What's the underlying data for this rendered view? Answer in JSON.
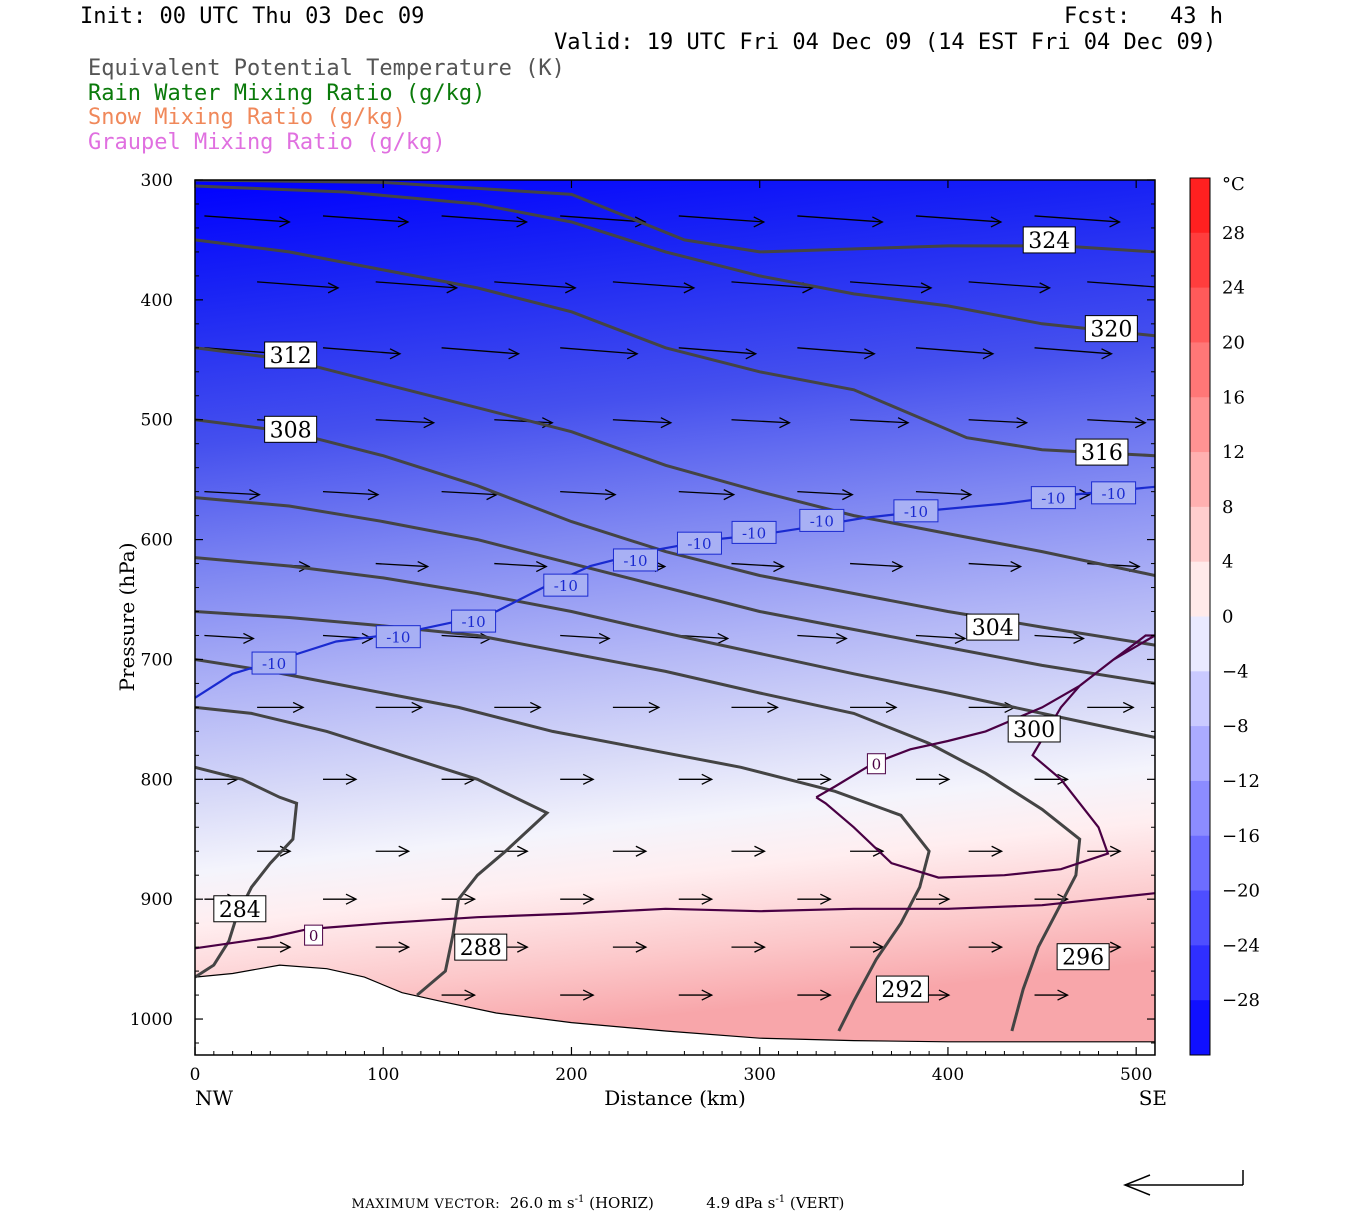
{
  "header": {
    "init": "Init: 00 UTC Thu 03 Dec 09",
    "fcst": "Fcst:   43 h",
    "valid": "Valid: 19 UTC Fri 04 Dec 09 (14 EST Fri 04 Dec 09)",
    "fields": [
      {
        "label": "Equivalent Potential Temperature (K)",
        "color": "#555555"
      },
      {
        "label": "Rain Water Mixing Ratio (g/kg)",
        "color": "#0a7a0a"
      },
      {
        "label": "Snow Mixing Ratio (g/kg)",
        "color": "#f0885a"
      },
      {
        "label": "Graupel Mixing Ratio (g/kg)",
        "color": "#e070e0"
      }
    ]
  },
  "chart_data": {
    "type": "cross-section",
    "xlabel": "Distance (km)",
    "ylabel": "Pressure (hPa)",
    "xlim": [
      0,
      510
    ],
    "ylim": [
      1030,
      300
    ],
    "x_ticks": [
      0,
      100,
      200,
      300,
      400,
      500
    ],
    "y_ticks": [
      300,
      400,
      500,
      600,
      700,
      800,
      900,
      1000
    ],
    "x_end_labels": {
      "left": "NW",
      "right": "SE"
    },
    "theta_e_contours": [
      {
        "value": 284,
        "label": "284",
        "points": [
          [
            0,
            790
          ],
          [
            25,
            800
          ],
          [
            45,
            815
          ],
          [
            54,
            820
          ],
          [
            52,
            850
          ],
          [
            40,
            870
          ],
          [
            30,
            890
          ],
          [
            22,
            915
          ],
          [
            18,
            935
          ],
          [
            10,
            955
          ],
          [
            0,
            965
          ]
        ],
        "label_at": [
          10,
          908
        ]
      },
      {
        "value": 288,
        "label": "288",
        "points": [
          [
            0,
            740
          ],
          [
            30,
            745
          ],
          [
            70,
            760
          ],
          [
            110,
            780
          ],
          [
            150,
            800
          ],
          [
            187,
            828
          ],
          [
            165,
            860
          ],
          [
            150,
            880
          ],
          [
            140,
            900
          ],
          [
            137,
            930
          ],
          [
            133,
            960
          ],
          [
            118,
            980
          ]
        ],
        "label_at": [
          138,
          940
        ]
      },
      {
        "value": 292,
        "label": "292",
        "points": [
          [
            0,
            700
          ],
          [
            40,
            710
          ],
          [
            90,
            725
          ],
          [
            140,
            740
          ],
          [
            190,
            760
          ],
          [
            240,
            775
          ],
          [
            290,
            790
          ],
          [
            340,
            810
          ],
          [
            375,
            830
          ],
          [
            390,
            860
          ],
          [
            385,
            890
          ],
          [
            375,
            920
          ],
          [
            362,
            950
          ],
          [
            350,
            985
          ],
          [
            342,
            1010
          ]
        ],
        "label_at": [
          362,
          975
        ]
      },
      {
        "value": 296,
        "label": "296",
        "points": [
          [
            0,
            660
          ],
          [
            50,
            665
          ],
          [
            100,
            672
          ],
          [
            150,
            680
          ],
          [
            200,
            695
          ],
          [
            250,
            710
          ],
          [
            300,
            728
          ],
          [
            350,
            745
          ],
          [
            390,
            770
          ],
          [
            420,
            795
          ],
          [
            450,
            825
          ],
          [
            470,
            850
          ],
          [
            468,
            880
          ],
          [
            458,
            910
          ],
          [
            448,
            940
          ],
          [
            440,
            975
          ],
          [
            434,
            1010
          ]
        ],
        "label_at": [
          458,
          948
        ]
      },
      {
        "value": 300,
        "label": "300",
        "points": [
          [
            0,
            615
          ],
          [
            50,
            622
          ],
          [
            100,
            632
          ],
          [
            150,
            645
          ],
          [
            200,
            660
          ],
          [
            250,
            678
          ],
          [
            300,
            695
          ],
          [
            350,
            712
          ],
          [
            400,
            728
          ],
          [
            450,
            745
          ],
          [
            510,
            765
          ]
        ],
        "label_at": [
          432,
          758
        ]
      },
      {
        "value": 304,
        "label": "304",
        "points": [
          [
            0,
            565
          ],
          [
            50,
            572
          ],
          [
            100,
            585
          ],
          [
            150,
            600
          ],
          [
            200,
            620
          ],
          [
            250,
            640
          ],
          [
            300,
            660
          ],
          [
            350,
            675
          ],
          [
            400,
            690
          ],
          [
            450,
            705
          ],
          [
            510,
            720
          ]
        ],
        "label_at": [
          410,
          673
        ]
      },
      {
        "value": 308,
        "label": "308",
        "points": [
          [
            0,
            500
          ],
          [
            50,
            510
          ],
          [
            100,
            530
          ],
          [
            150,
            555
          ],
          [
            200,
            585
          ],
          [
            250,
            610
          ],
          [
            300,
            630
          ],
          [
            350,
            645
          ],
          [
            400,
            660
          ],
          [
            450,
            673
          ],
          [
            510,
            688
          ]
        ],
        "label_at": [
          37,
          508
        ]
      },
      {
        "value": 312,
        "label": "312",
        "points": [
          [
            0,
            440
          ],
          [
            50,
            450
          ],
          [
            100,
            470
          ],
          [
            150,
            490
          ],
          [
            200,
            510
          ],
          [
            250,
            538
          ],
          [
            300,
            560
          ],
          [
            350,
            580
          ],
          [
            400,
            595
          ],
          [
            450,
            610
          ],
          [
            510,
            630
          ]
        ],
        "label_at": [
          37,
          446
        ]
      },
      {
        "value": 316,
        "label": "316",
        "points": [
          [
            0,
            350
          ],
          [
            50,
            360
          ],
          [
            100,
            375
          ],
          [
            150,
            390
          ],
          [
            200,
            410
          ],
          [
            250,
            440
          ],
          [
            300,
            460
          ],
          [
            350,
            475
          ],
          [
            380,
            495
          ],
          [
            410,
            515
          ],
          [
            450,
            525
          ],
          [
            510,
            530
          ]
        ],
        "label_at": [
          468,
          527
        ]
      },
      {
        "value": 320,
        "label": "320",
        "points": [
          [
            0,
            305
          ],
          [
            80,
            310
          ],
          [
            150,
            320
          ],
          [
            200,
            335
          ],
          [
            250,
            360
          ],
          [
            300,
            380
          ],
          [
            350,
            395
          ],
          [
            400,
            405
          ],
          [
            450,
            420
          ],
          [
            510,
            430
          ]
        ],
        "label_at": [
          473,
          424
        ]
      },
      {
        "value": 324,
        "label": "324",
        "points": [
          [
            0,
            300
          ],
          [
            100,
            302
          ],
          [
            200,
            312
          ],
          [
            260,
            350
          ],
          [
            300,
            360
          ],
          [
            400,
            355
          ],
          [
            460,
            355
          ],
          [
            510,
            360
          ]
        ],
        "label_at": [
          440,
          350
        ]
      }
    ],
    "zero_contours": [
      {
        "label": "0",
        "points": [
          [
            0,
            941
          ],
          [
            40,
            932
          ],
          [
            60,
            925
          ],
          [
            100,
            920
          ],
          [
            150,
            915
          ],
          [
            200,
            912
          ],
          [
            250,
            908
          ],
          [
            300,
            910
          ],
          [
            350,
            908
          ],
          [
            400,
            908
          ],
          [
            450,
            905
          ],
          [
            510,
            895
          ]
        ],
        "label_at": [
          63,
          930
        ]
      },
      {
        "label": "0",
        "points": [
          [
            330,
            815
          ],
          [
            340,
            806
          ],
          [
            360,
            787
          ],
          [
            380,
            775
          ],
          [
            400,
            768
          ],
          [
            420,
            760
          ],
          [
            450,
            740
          ],
          [
            470,
            722
          ],
          [
            488,
            700
          ],
          [
            505,
            680
          ],
          [
            510,
            680
          ],
          [
            488,
            700
          ],
          [
            470,
            722
          ],
          [
            460,
            740
          ],
          [
            445,
            780
          ],
          [
            460,
            800
          ],
          [
            480,
            840
          ],
          [
            485,
            862
          ],
          [
            460,
            875
          ],
          [
            430,
            880
          ],
          [
            395,
            882
          ],
          [
            370,
            870
          ],
          [
            350,
            840
          ],
          [
            335,
            820
          ],
          [
            330,
            815
          ]
        ],
        "label_at": [
          362,
          787
        ]
      }
    ],
    "minus10_contour": {
      "label": "-10",
      "points": [
        [
          0,
          732
        ],
        [
          20,
          712
        ],
        [
          45,
          700
        ],
        [
          75,
          685
        ],
        [
          110,
          678
        ],
        [
          140,
          668
        ],
        [
          160,
          660
        ],
        [
          185,
          640
        ],
        [
          210,
          622
        ],
        [
          240,
          610
        ],
        [
          275,
          600
        ],
        [
          300,
          596
        ],
        [
          325,
          590
        ],
        [
          355,
          582
        ],
        [
          395,
          575
        ],
        [
          430,
          570
        ],
        [
          470,
          562
        ],
        [
          510,
          556
        ]
      ],
      "labels_at": [
        [
          42,
          703
        ],
        [
          108,
          681
        ],
        [
          148,
          668
        ],
        [
          197,
          638
        ],
        [
          234,
          617
        ],
        [
          268,
          603
        ],
        [
          297,
          594
        ],
        [
          333,
          584
        ],
        [
          383,
          576
        ],
        [
          456,
          565
        ],
        [
          488,
          561
        ]
      ]
    },
    "temperature_colorbar": {
      "unit": "°C",
      "tick_labels": [
        "28",
        "24",
        "20",
        "16",
        "12",
        "8",
        "4",
        "0",
        "−4",
        "−8",
        "−12",
        "−16",
        "−20",
        "−24",
        "−28"
      ],
      "range": [
        -32,
        32
      ],
      "step": 4
    },
    "wind_vectors_note": "arrows show along-section wind"
  },
  "footer": {
    "max_vector_label": "MAXIMUM VECTOR:",
    "horiz": "26.0 m s",
    "horiz_sup": "-1",
    "horiz_unit": " (HORIZ)",
    "vert": "4.9 dPa s",
    "vert_sup": "-1",
    "vert_unit": " (VERT)"
  }
}
